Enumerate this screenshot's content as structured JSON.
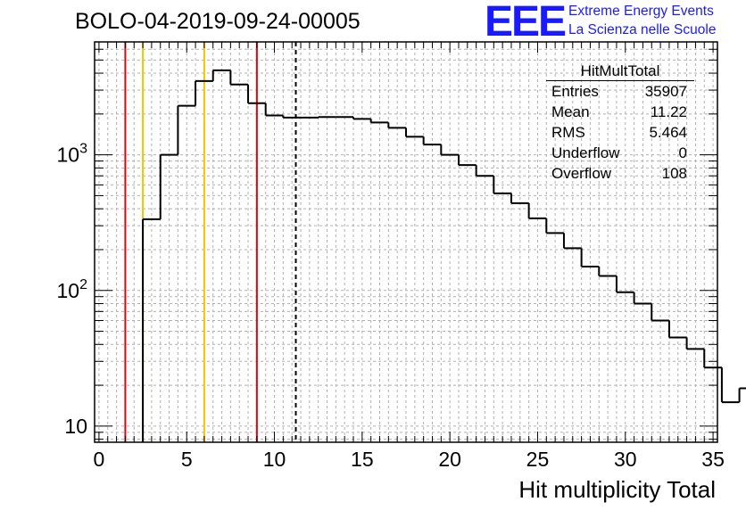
{
  "chart_data": {
    "type": "histogram",
    "title": "BOLO-04-2019-09-24-00005",
    "xlabel": "Hit multiplicity Total",
    "ylabel": "",
    "xlim": [
      -0.25,
      35.25
    ],
    "ylim": [
      7.6,
      6800
    ],
    "log_y": true,
    "grid": true,
    "bin_width": 1,
    "bin_start": 2.5,
    "bin_values": [
      335,
      1000,
      2300,
      3500,
      4200,
      3300,
      2400,
      1950,
      1880,
      1880,
      1900,
      1900,
      1840,
      1730,
      1580,
      1360,
      1190,
      1000,
      840,
      700,
      520,
      440,
      340,
      265,
      205,
      150,
      128,
      97,
      80,
      60,
      45,
      37,
      27,
      15,
      19
    ],
    "x_ticks": [
      0,
      5,
      10,
      15,
      20,
      25,
      30,
      35
    ],
    "x_tick_labels": [
      "0",
      "5",
      "10",
      "15",
      "20",
      "25",
      "30",
      "35"
    ],
    "y_major_ticks": [
      10,
      100,
      1000
    ],
    "y_tick_labels": [
      {
        "base": "10",
        "exp": ""
      },
      {
        "base": "10",
        "exp": "2"
      },
      {
        "base": "10",
        "exp": "3"
      }
    ],
    "vertical_lines": [
      {
        "x": 1.5,
        "color": "#e8000b",
        "style": "solid"
      },
      {
        "x": 2.5,
        "color": "#f5c400",
        "style": "solid"
      },
      {
        "x": 6.0,
        "color": "#f5c400",
        "style": "solid"
      },
      {
        "x": 9.0,
        "color": "#e8000b",
        "style": "solid"
      },
      {
        "x": 11.22,
        "color": "#000000",
        "style": "dashed"
      }
    ],
    "stats": {
      "name": "HitMultTotal",
      "rows": [
        {
          "label": "Entries",
          "value": "35907"
        },
        {
          "label": "Mean",
          "value": "11.22"
        },
        {
          "label": "RMS",
          "value": "5.464"
        },
        {
          "label": "Underflow",
          "value": "0"
        },
        {
          "label": "Overflow",
          "value": "108"
        }
      ]
    }
  },
  "logo": {
    "mark": "EEE",
    "line1": "Extreme Energy Events",
    "line2": "La Scienza nelle Scuole",
    "color": "#1a1aff"
  }
}
